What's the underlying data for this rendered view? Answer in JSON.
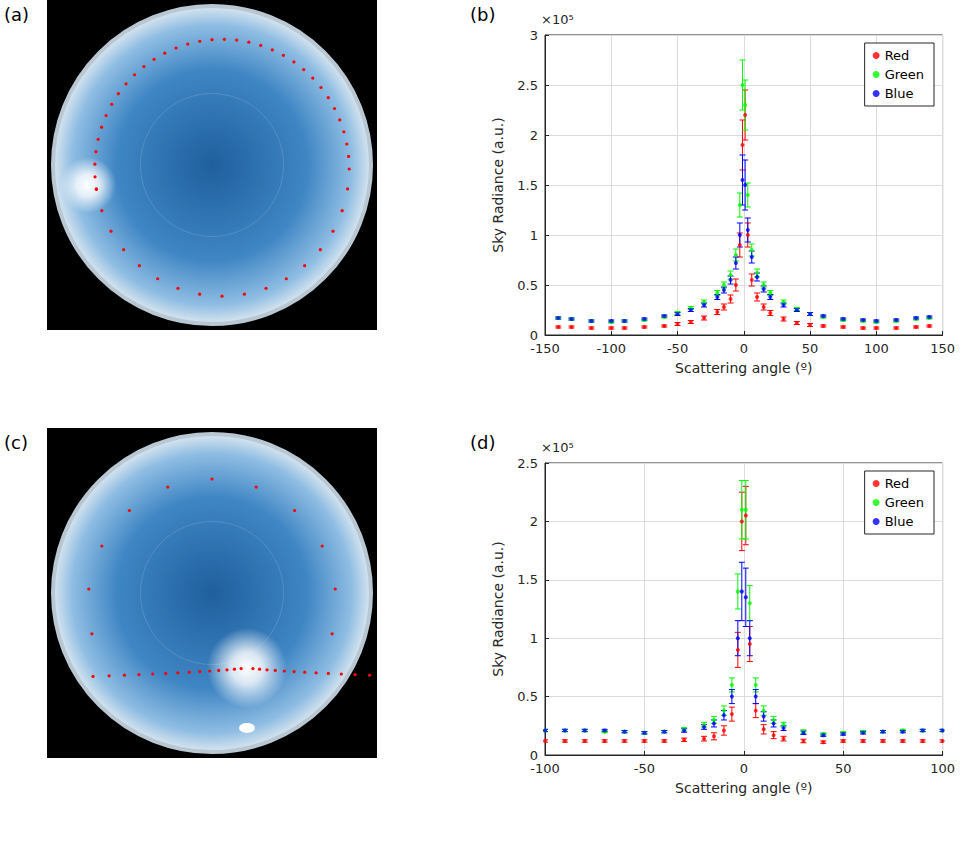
{
  "chart_data": [
    {
      "type": "image",
      "label": "(a)"
    },
    {
      "type": "scatter",
      "label": "(b)",
      "annotation": "×10⁵",
      "x_label": "Scattering angle (º)",
      "y_label": "Sky Radiance (a.u.)",
      "xlim": [
        -150,
        150
      ],
      "xticks": [
        -150,
        -100,
        -50,
        0,
        50,
        100,
        150
      ],
      "ylim": [
        0,
        3
      ],
      "yticks": [
        0,
        0.5,
        1,
        1.5,
        2,
        2.5,
        3
      ],
      "grid": true,
      "legend": "upper right",
      "marker": "circle",
      "x": [
        -140,
        -130,
        -115,
        -100,
        -90,
        -75,
        -60,
        -50,
        -40,
        -30,
        -20,
        -15,
        -10,
        -6,
        -3,
        -1,
        1,
        3,
        6,
        10,
        15,
        20,
        30,
        40,
        50,
        60,
        75,
        90,
        100,
        115,
        130,
        140
      ],
      "series": [
        {
          "name": "Red",
          "color": "#ff0000",
          "values": [
            0.08,
            0.08,
            0.07,
            0.07,
            0.07,
            0.08,
            0.09,
            0.11,
            0.13,
            0.17,
            0.23,
            0.28,
            0.36,
            0.5,
            0.9,
            1.9,
            2.2,
            1.0,
            0.55,
            0.38,
            0.28,
            0.22,
            0.16,
            0.12,
            0.1,
            0.09,
            0.08,
            0.07,
            0.07,
            0.07,
            0.08,
            0.09
          ],
          "errors": [
            0.01,
            0.01,
            0.01,
            0.01,
            0.01,
            0.01,
            0.01,
            0.015,
            0.015,
            0.02,
            0.025,
            0.03,
            0.04,
            0.06,
            0.12,
            0.25,
            0.25,
            0.12,
            0.06,
            0.04,
            0.03,
            0.025,
            0.02,
            0.015,
            0.015,
            0.01,
            0.01,
            0.01,
            0.01,
            0.01,
            0.01,
            0.01
          ]
        },
        {
          "name": "Green",
          "color": "#00ff00",
          "values": [
            0.17,
            0.16,
            0.14,
            0.13,
            0.14,
            0.15,
            0.18,
            0.22,
            0.27,
            0.33,
            0.42,
            0.5,
            0.6,
            0.8,
            1.3,
            2.5,
            2.3,
            1.4,
            0.85,
            0.62,
            0.5,
            0.42,
            0.33,
            0.26,
            0.21,
            0.18,
            0.15,
            0.14,
            0.13,
            0.14,
            0.16,
            0.17
          ],
          "errors": [
            0.01,
            0.01,
            0.01,
            0.01,
            0.01,
            0.01,
            0.01,
            0.015,
            0.015,
            0.02,
            0.025,
            0.03,
            0.04,
            0.06,
            0.12,
            0.25,
            0.25,
            0.12,
            0.06,
            0.04,
            0.03,
            0.025,
            0.02,
            0.015,
            0.015,
            0.01,
            0.01,
            0.01,
            0.01,
            0.01,
            0.01,
            0.01
          ]
        },
        {
          "name": "Blue",
          "color": "#0000ff",
          "values": [
            0.17,
            0.16,
            0.14,
            0.14,
            0.14,
            0.16,
            0.19,
            0.21,
            0.25,
            0.3,
            0.38,
            0.45,
            0.55,
            0.72,
            1.0,
            1.55,
            1.5,
            1.05,
            0.78,
            0.58,
            0.46,
            0.38,
            0.3,
            0.25,
            0.21,
            0.19,
            0.16,
            0.15,
            0.14,
            0.15,
            0.17,
            0.18
          ],
          "errors": [
            0.01,
            0.01,
            0.01,
            0.01,
            0.01,
            0.01,
            0.01,
            0.015,
            0.015,
            0.02,
            0.025,
            0.03,
            0.04,
            0.06,
            0.12,
            0.25,
            0.25,
            0.12,
            0.06,
            0.04,
            0.03,
            0.025,
            0.02,
            0.015,
            0.015,
            0.01,
            0.01,
            0.01,
            0.01,
            0.01,
            0.01,
            0.01
          ]
        }
      ]
    },
    {
      "type": "image",
      "label": "(c)"
    },
    {
      "type": "scatter",
      "label": "(d)",
      "annotation": "×10⁵",
      "x_label": "Scattering angle (º)",
      "y_label": "Sky Radiance (a.u.)",
      "xlim": [
        -100,
        100
      ],
      "xticks": [
        -100,
        -50,
        0,
        50,
        100
      ],
      "ylim": [
        0,
        2.5
      ],
      "yticks": [
        0,
        0.5,
        1,
        1.5,
        2,
        2.5
      ],
      "grid": true,
      "legend": "upper right",
      "marker": "circle",
      "x": [
        -100,
        -90,
        -80,
        -70,
        -60,
        -50,
        -40,
        -30,
        -20,
        -15,
        -10,
        -6,
        -3,
        -1,
        1,
        3,
        6,
        10,
        15,
        20,
        30,
        40,
        50,
        60,
        70,
        80,
        90,
        100
      ],
      "series": [
        {
          "name": "Red",
          "color": "#ff0000",
          "values": [
            0.12,
            0.12,
            0.12,
            0.12,
            0.12,
            0.12,
            0.12,
            0.13,
            0.14,
            0.16,
            0.21,
            0.35,
            0.9,
            2.0,
            2.05,
            0.95,
            0.38,
            0.22,
            0.17,
            0.14,
            0.12,
            0.11,
            0.12,
            0.12,
            0.12,
            0.12,
            0.12,
            0.12
          ],
          "errors": [
            0.01,
            0.01,
            0.01,
            0.01,
            0.01,
            0.01,
            0.01,
            0.015,
            0.02,
            0.03,
            0.04,
            0.06,
            0.15,
            0.25,
            0.25,
            0.15,
            0.06,
            0.04,
            0.03,
            0.02,
            0.015,
            0.01,
            0.01,
            0.01,
            0.01,
            0.01,
            0.01,
            0.01
          ]
        },
        {
          "name": "Green",
          "color": "#00ff00",
          "values": [
            0.21,
            0.21,
            0.21,
            0.2,
            0.2,
            0.19,
            0.2,
            0.22,
            0.26,
            0.3,
            0.38,
            0.6,
            1.4,
            2.1,
            2.1,
            1.3,
            0.6,
            0.38,
            0.3,
            0.26,
            0.2,
            0.18,
            0.19,
            0.2,
            0.2,
            0.21,
            0.21,
            0.21
          ],
          "errors": [
            0.01,
            0.01,
            0.01,
            0.01,
            0.01,
            0.01,
            0.01,
            0.015,
            0.02,
            0.03,
            0.04,
            0.06,
            0.15,
            0.25,
            0.25,
            0.15,
            0.06,
            0.04,
            0.03,
            0.02,
            0.015,
            0.01,
            0.01,
            0.01,
            0.01,
            0.01,
            0.01,
            0.01
          ]
        },
        {
          "name": "Blue",
          "color": "#0000ff",
          "values": [
            0.21,
            0.21,
            0.21,
            0.21,
            0.2,
            0.19,
            0.2,
            0.21,
            0.24,
            0.27,
            0.34,
            0.5,
            1.0,
            1.4,
            1.35,
            1.0,
            0.5,
            0.33,
            0.27,
            0.23,
            0.19,
            0.17,
            0.18,
            0.19,
            0.2,
            0.2,
            0.21,
            0.21
          ],
          "errors": [
            0.01,
            0.01,
            0.01,
            0.01,
            0.01,
            0.01,
            0.01,
            0.015,
            0.02,
            0.03,
            0.04,
            0.06,
            0.15,
            0.25,
            0.25,
            0.15,
            0.06,
            0.04,
            0.03,
            0.02,
            0.015,
            0.01,
            0.01,
            0.01,
            0.01,
            0.01,
            0.01,
            0.01
          ]
        }
      ]
    }
  ]
}
